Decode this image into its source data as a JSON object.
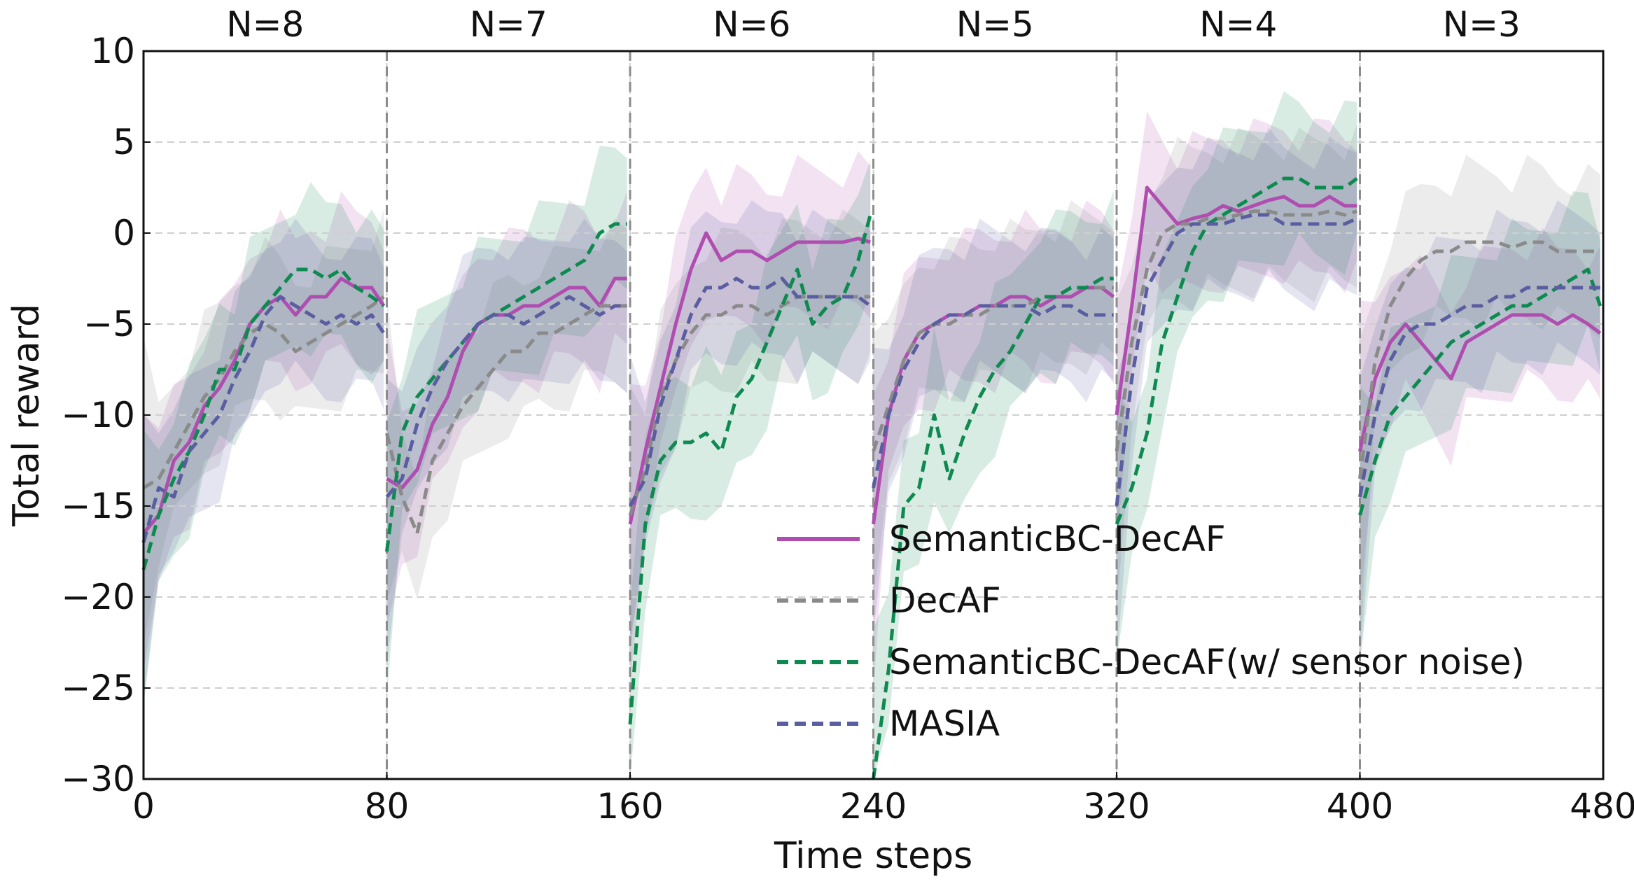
{
  "chart_data": {
    "type": "line",
    "xlabel": "Time steps",
    "ylabel": "Total reward",
    "xlim": [
      0,
      480
    ],
    "ylim": [
      -30,
      10
    ],
    "xticks": [
      0,
      80,
      160,
      240,
      320,
      400,
      480
    ],
    "yticks": [
      10,
      5,
      0,
      -5,
      -10,
      -15,
      -20,
      -25,
      -30
    ],
    "grid": true,
    "legend_position": "lower-center",
    "segments": [
      {
        "label": "N=8",
        "start": 0,
        "end": 80
      },
      {
        "label": "N=7",
        "start": 80,
        "end": 160
      },
      {
        "label": "N=6",
        "start": 160,
        "end": 240
      },
      {
        "label": "N=5",
        "start": 240,
        "end": 320
      },
      {
        "label": "N=4",
        "start": 320,
        "end": 400
      },
      {
        "label": "N=3",
        "start": 400,
        "end": 480
      }
    ],
    "x": [
      0,
      5,
      10,
      15,
      20,
      25,
      30,
      35,
      40,
      45,
      50,
      55,
      60,
      65,
      70,
      75,
      79,
      80,
      85,
      90,
      95,
      100,
      105,
      110,
      115,
      120,
      125,
      130,
      135,
      140,
      145,
      150,
      155,
      159,
      160,
      165,
      170,
      175,
      180,
      185,
      190,
      195,
      200,
      205,
      210,
      215,
      220,
      225,
      230,
      235,
      239,
      240,
      245,
      250,
      255,
      260,
      265,
      270,
      275,
      280,
      285,
      290,
      295,
      300,
      305,
      310,
      315,
      319,
      320,
      325,
      330,
      335,
      340,
      345,
      350,
      355,
      360,
      365,
      370,
      375,
      380,
      385,
      390,
      395,
      399,
      400,
      405,
      410,
      415,
      420,
      425,
      430,
      435,
      440,
      445,
      450,
      455,
      460,
      465,
      470,
      475,
      479
    ],
    "series": [
      {
        "name": "SemanticBC-DecAF",
        "color": "#b04db0",
        "dash": "solid",
        "values": [
          -16.5,
          -15.5,
          -12.5,
          -11.5,
          -9.5,
          -8.5,
          -7.0,
          -5.0,
          -4.0,
          -3.5,
          -4.5,
          -3.5,
          -3.5,
          -2.5,
          -3.0,
          -3.0,
          -4.0,
          -13.5,
          -14.0,
          -13.0,
          -10.5,
          -9.0,
          -6.5,
          -5.0,
          -4.5,
          -4.5,
          -4.0,
          -4.0,
          -3.5,
          -3.0,
          -3.0,
          -4.0,
          -2.5,
          -2.5,
          -16.0,
          -12.0,
          -8.5,
          -5.0,
          -2.0,
          0.0,
          -1.5,
          -1.0,
          -1.0,
          -1.5,
          -1.0,
          -0.5,
          -0.5,
          -0.5,
          -0.5,
          -0.3,
          -0.5,
          -16.0,
          -10.0,
          -7.0,
          -5.5,
          -5.0,
          -4.5,
          -4.5,
          -4.0,
          -4.0,
          -3.5,
          -3.5,
          -4.0,
          -3.5,
          -3.5,
          -3.0,
          -3.0,
          -3.5,
          -10.0,
          -4.0,
          2.5,
          1.5,
          0.5,
          0.8,
          1.0,
          1.5,
          1.2,
          1.5,
          1.8,
          2.0,
          1.5,
          1.5,
          2.0,
          1.5,
          1.5,
          -12.0,
          -8.0,
          -6.0,
          -5.0,
          -6.0,
          -7.0,
          -8.0,
          -6.0,
          -5.5,
          -5.0,
          -4.5,
          -4.5,
          -4.5,
          -5.0,
          -4.5,
          -5.0,
          -5.5
        ]
      },
      {
        "name": "DecAF",
        "color": "#8a8a8a",
        "dash": "dashed",
        "values": [
          -14.0,
          -13.5,
          -12.0,
          -10.5,
          -9.0,
          -8.0,
          -6.5,
          -5.5,
          -5.0,
          -5.5,
          -6.5,
          -6.0,
          -5.5,
          -5.0,
          -4.5,
          -4.0,
          -3.5,
          -11.0,
          -14.5,
          -16.5,
          -12.5,
          -11.0,
          -9.5,
          -8.5,
          -7.5,
          -6.5,
          -6.5,
          -5.5,
          -5.5,
          -5.0,
          -4.5,
          -4.0,
          -4.0,
          -4.0,
          -15.5,
          -13.0,
          -9.0,
          -7.0,
          -5.5,
          -4.5,
          -4.5,
          -4.0,
          -4.0,
          -4.5,
          -4.0,
          -3.5,
          -3.5,
          -3.5,
          -3.5,
          -3.5,
          -3.5,
          -12.0,
          -9.5,
          -7.0,
          -5.5,
          -5.0,
          -5.0,
          -4.5,
          -4.5,
          -4.0,
          -4.0,
          -4.0,
          -3.5,
          -3.5,
          -3.0,
          -3.0,
          -3.0,
          -3.0,
          -12.0,
          -6.0,
          -2.0,
          0.0,
          0.5,
          0.5,
          0.8,
          0.8,
          1.0,
          1.2,
          1.2,
          1.0,
          1.0,
          1.0,
          1.2,
          1.0,
          1.2,
          -13.5,
          -7.0,
          -4.0,
          -2.5,
          -1.5,
          -1.0,
          -1.0,
          -0.5,
          -0.5,
          -0.5,
          -0.8,
          -0.5,
          -0.5,
          -1.0,
          -1.0,
          -1.0,
          -1.0
        ]
      },
      {
        "name": "SemanticBC-DecAF(w/ sensor noise)",
        "color": "#0e8a50",
        "dash": "dashed",
        "values": [
          -18.5,
          -15.5,
          -13.5,
          -12.0,
          -10.0,
          -7.5,
          -7.5,
          -5.0,
          -4.0,
          -3.0,
          -2.0,
          -2.0,
          -2.5,
          -2.0,
          -3.0,
          -3.5,
          -4.0,
          -17.5,
          -11.0,
          -9.0,
          -8.0,
          -7.0,
          -6.0,
          -5.0,
          -4.5,
          -4.0,
          -3.5,
          -3.0,
          -2.5,
          -2.0,
          -1.5,
          0.0,
          0.5,
          0.5,
          -27.0,
          -16.0,
          -12.5,
          -11.5,
          -11.5,
          -11.0,
          -12.0,
          -9.0,
          -8.0,
          -6.0,
          -4.0,
          -2.0,
          -5.0,
          -4.0,
          -3.5,
          -1.5,
          1.0,
          -30.0,
          -24.0,
          -15.0,
          -14.0,
          -10.0,
          -13.5,
          -11.0,
          -9.0,
          -7.5,
          -6.5,
          -5.0,
          -3.5,
          -3.5,
          -3.0,
          -3.0,
          -2.5,
          -2.5,
          -16.0,
          -14.0,
          -11.0,
          -6.0,
          -3.5,
          -1.0,
          0.5,
          1.0,
          1.5,
          2.0,
          2.5,
          3.0,
          3.0,
          2.5,
          2.5,
          2.5,
          3.0,
          -15.5,
          -12.5,
          -10.0,
          -9.0,
          -8.0,
          -7.0,
          -6.0,
          -5.5,
          -5.0,
          -4.5,
          -4.0,
          -4.0,
          -3.5,
          -3.0,
          -2.5,
          -2.0,
          -4.0
        ]
      },
      {
        "name": "MASIA",
        "color": "#5a5ea0",
        "dash": "dashed",
        "values": [
          -17.0,
          -14.0,
          -14.5,
          -12.0,
          -11.0,
          -10.0,
          -8.0,
          -6.5,
          -4.5,
          -3.5,
          -4.0,
          -4.5,
          -5.0,
          -4.5,
          -5.0,
          -4.5,
          -5.5,
          -14.5,
          -13.5,
          -10.5,
          -8.5,
          -7.0,
          -6.0,
          -5.0,
          -4.5,
          -4.5,
          -5.0,
          -4.5,
          -4.0,
          -3.5,
          -4.0,
          -4.5,
          -4.0,
          -4.0,
          -15.0,
          -13.5,
          -9.5,
          -7.0,
          -4.5,
          -3.0,
          -3.0,
          -2.5,
          -3.0,
          -3.0,
          -2.5,
          -3.5,
          -3.5,
          -3.5,
          -3.5,
          -3.5,
          -4.0,
          -14.0,
          -10.0,
          -7.5,
          -6.0,
          -5.0,
          -4.5,
          -4.5,
          -4.0,
          -4.0,
          -4.0,
          -4.0,
          -4.5,
          -4.0,
          -4.0,
          -4.5,
          -4.5,
          -4.5,
          -15.0,
          -8.0,
          -3.0,
          -1.5,
          0.0,
          0.5,
          0.5,
          0.5,
          0.8,
          1.0,
          1.0,
          0.5,
          0.5,
          0.5,
          0.5,
          0.5,
          0.8,
          -14.5,
          -10.0,
          -7.0,
          -5.5,
          -5.0,
          -5.0,
          -4.5,
          -4.0,
          -4.0,
          -3.5,
          -3.5,
          -3.0,
          -3.0,
          -3.0,
          -3.0,
          -3.0,
          -3.0
        ]
      }
    ]
  }
}
